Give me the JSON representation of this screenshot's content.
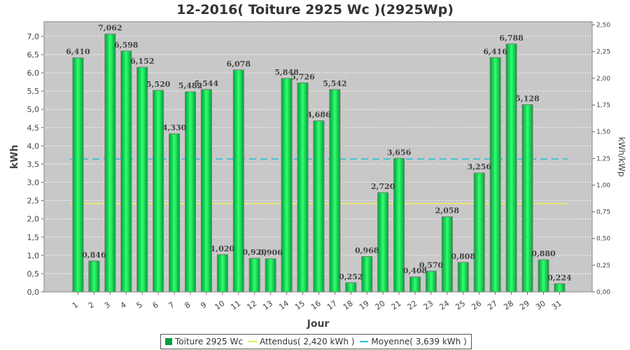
{
  "chart_data": {
    "type": "bar",
    "title": "12-2016( Toiture 2925 Wc )(2925Wp)",
    "xlabel": "Jour",
    "ylabel": "kWh",
    "ylabel_right": "kWh/kWp",
    "ylim": [
      0,
      7.4
    ],
    "ylim_right": [
      0,
      2.53
    ],
    "yticks": [
      "0,0",
      "0,5",
      "1,0",
      "1,5",
      "2,0",
      "2,5",
      "3,0",
      "3,5",
      "4,0",
      "4,5",
      "5,0",
      "5,5",
      "6,0",
      "6,5",
      "7,0"
    ],
    "yticks_right": [
      "0,00",
      "0,25",
      "0,50",
      "0,75",
      "1,00",
      "1,25",
      "1,50",
      "1,75",
      "2,00",
      "2,25",
      "2,50"
    ],
    "grid": true,
    "legend_position": "bottom",
    "categories": [
      "1",
      "2",
      "3",
      "4",
      "5",
      "6",
      "7",
      "8",
      "9",
      "10",
      "11",
      "12",
      "13",
      "14",
      "15",
      "16",
      "17",
      "18",
      "19",
      "20",
      "21",
      "22",
      "23",
      "24",
      "25",
      "26",
      "27",
      "28",
      "29",
      "30",
      "31"
    ],
    "series": [
      {
        "name": "Toiture 2925 Wc",
        "color": "#00d44a",
        "values": [
          6.41,
          0.846,
          7.062,
          6.598,
          6.152,
          5.52,
          4.33,
          5.482,
          5.544,
          1.02,
          6.078,
          0.92,
          0.906,
          5.848,
          5.726,
          4.686,
          5.542,
          0.252,
          0.968,
          2.72,
          3.656,
          0.408,
          0.57,
          2.058,
          0.808,
          3.256,
          6.416,
          6.788,
          5.128,
          0.88,
          0.224
        ],
        "labels": [
          "6,410",
          "0,846",
          "7,062",
          "6,598",
          "6,152",
          "5,520",
          "4,330",
          "5,482",
          "5,544",
          "1,020",
          "6,078",
          "0,920",
          "0,906",
          "5,848",
          "5,726",
          "4,686",
          "5,542",
          "0,252",
          "0,968",
          "2,720",
          "3,656",
          "0,408",
          "0,570",
          "2,058",
          "0,808",
          "3,256",
          "6,416",
          "6,788",
          "5,128",
          "0,880",
          "0,224"
        ]
      }
    ],
    "reference_lines": [
      {
        "name": "Attendus( 2,420 kWh )",
        "value": 2.42,
        "color": "#f0f060",
        "style": "solid"
      },
      {
        "name": "Moyenne( 3,639 kWh )",
        "value": 3.639,
        "color": "#20c0d8",
        "style": "dashed"
      }
    ],
    "colors": {
      "plot_bg": "#c8c8c8",
      "grid": "#ffffff",
      "bar_edge": "#708070"
    }
  }
}
